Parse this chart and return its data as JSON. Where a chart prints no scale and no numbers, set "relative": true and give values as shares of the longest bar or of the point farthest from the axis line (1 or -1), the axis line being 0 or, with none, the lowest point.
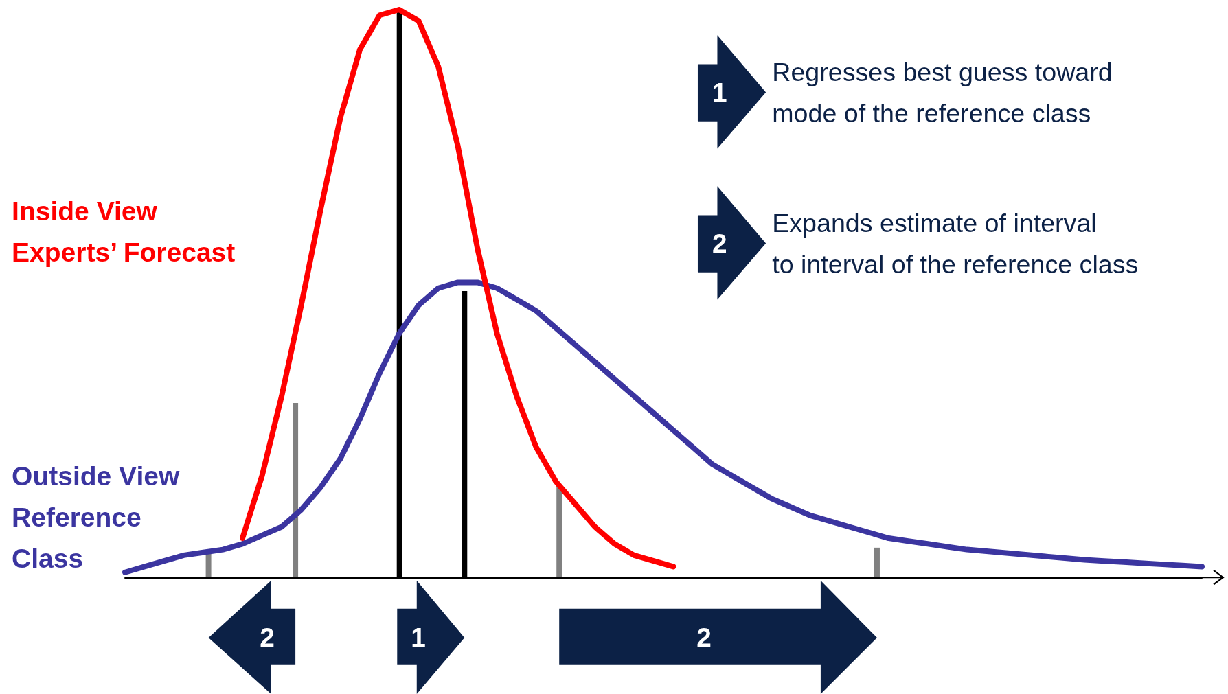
{
  "chart_data": {
    "type": "line",
    "relative": true,
    "legend": false,
    "grid": false,
    "categories": [
      null,
      null,
      null,
      null,
      null,
      null,
      null,
      null,
      null,
      null,
      null,
      null,
      null,
      null,
      null,
      null,
      null,
      null,
      null,
      null,
      null,
      null,
      null,
      null,
      null,
      null,
      null,
      null,
      null,
      null,
      null,
      null,
      null,
      null,
      null,
      null,
      null,
      null,
      null,
      null,
      null,
      null,
      null,
      null,
      null,
      null,
      null,
      null,
      null,
      null,
      null,
      null,
      null,
      null,
      null,
      null
    ],
    "series": [
      {
        "name": "Outside View\nReference\nClass",
        "color": "#3b35a0",
        "values": [
          0.01,
          0.02,
          0.03,
          0.04,
          0.045,
          0.05,
          0.06,
          0.075,
          0.09,
          0.12,
          0.16,
          0.21,
          0.28,
          0.36,
          0.43,
          0.48,
          0.51,
          0.52,
          0.52,
          0.51,
          0.49,
          0.47,
          0.44,
          0.41,
          0.38,
          0.35,
          0.32,
          0.29,
          0.26,
          0.23,
          0.2,
          0.18,
          0.16,
          0.14,
          0.125,
          0.11,
          0.1,
          0.09,
          0.08,
          0.07,
          0.065,
          0.06,
          0.055,
          0.05,
          0.047,
          0.044,
          0.041,
          0.038,
          0.035,
          0.032,
          0.03,
          0.028,
          0.026,
          0.024,
          0.022,
          0.02
        ]
      },
      {
        "name": "Inside View\nExperts’ Forecast",
        "color": "#ff0000",
        "values": [
          null,
          null,
          null,
          null,
          null,
          null,
          0.07,
          0.18,
          0.32,
          0.48,
          0.65,
          0.81,
          0.93,
          0.99,
          1.0,
          0.98,
          0.9,
          0.76,
          0.58,
          0.43,
          0.32,
          0.23,
          0.17,
          0.13,
          0.09,
          0.06,
          0.04,
          0.03,
          0.02,
          null,
          null,
          null,
          null,
          null,
          null,
          null,
          null,
          null,
          null,
          null,
          null,
          null,
          null,
          null,
          null,
          null,
          null,
          null,
          null,
          null,
          null,
          null,
          null,
          null,
          null,
          null
        ]
      }
    ],
    "annotations": [
      "1",
      "Regresses best guess toward\nmode of the reference class",
      "2",
      "Expands estimate of interval\nto interval of the reference class",
      "2",
      "1",
      "2"
    ]
  }
}
